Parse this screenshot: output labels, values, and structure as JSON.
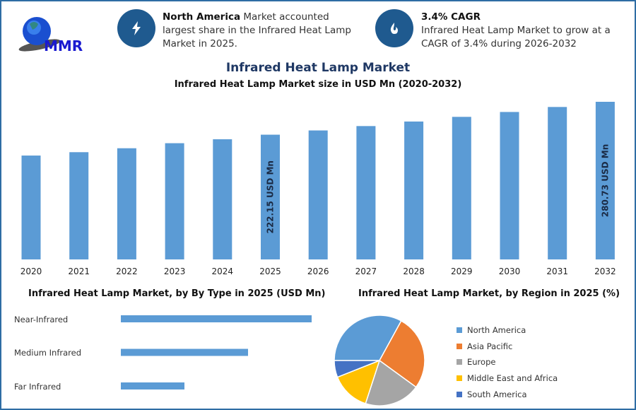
{
  "logo": {
    "text": "MMR"
  },
  "highlights": [
    {
      "icon": "lightning-icon",
      "bold": "North America",
      "text": " Market accounted largest share in the Infrared Heat Lamp Market in 2025."
    },
    {
      "icon": "flame-icon",
      "bold": "3.4% CAGR",
      "text": "Infrared Heat Lamp Market to grow at a CAGR of 3.4% during 2026-2032"
    }
  ],
  "colors": {
    "accent": "#1f5a8f",
    "bar": "#5b9bd5",
    "title": "#1f3864"
  },
  "chart_data": [
    {
      "type": "bar",
      "title": "Infrared Heat Lamp Market",
      "subtitle": "Infrared Heat Lamp Market size in USD Mn (2020-2032)",
      "categories": [
        "2020",
        "2021",
        "2022",
        "2023",
        "2024",
        "2025",
        "2026",
        "2027",
        "2028",
        "2029",
        "2030",
        "2031",
        "2032"
      ],
      "values": [
        185,
        191,
        198,
        207,
        214,
        222.15,
        229.7,
        237.5,
        245.6,
        253.9,
        262.6,
        271.5,
        280.73
      ],
      "data_labels": [
        {
          "index": 5,
          "text": "222.15 USD Mn"
        },
        {
          "index": 12,
          "text": "280.73 USD Mn"
        }
      ],
      "ylim": [
        0,
        290
      ],
      "grid": false
    },
    {
      "type": "bar",
      "orientation": "horizontal",
      "title": "Infrared Heat Lamp Market, by By Type in 2025 (USD Mn)",
      "categories": [
        "Near-Infrared",
        "Medium Infrared",
        "Far Infrared"
      ],
      "values": [
        3,
        2,
        1
      ],
      "grid": false
    },
    {
      "type": "pie",
      "title": "Infrared Heat Lamp Market, by Region in 2025 (%)",
      "categories": [
        "North America",
        "Asia Pacific",
        "Europe",
        "Middle East and Africa",
        "South America"
      ],
      "values": [
        33,
        27,
        20,
        14,
        6
      ],
      "colors": [
        "#5b9bd5",
        "#ed7d31",
        "#a5a5a5",
        "#ffc000",
        "#4472c4"
      ],
      "legend": "right"
    }
  ]
}
